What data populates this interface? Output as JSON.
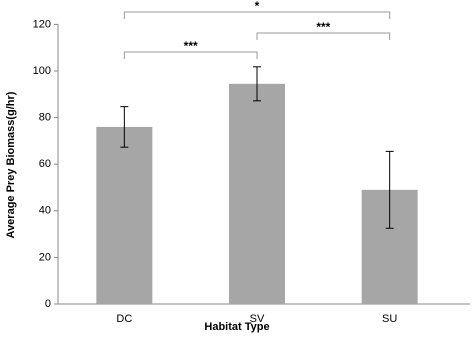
{
  "chart_data": {
    "type": "bar",
    "x_label": "Habitat Type",
    "y_label": "Average Prey Biomass(g/hr)",
    "categories": [
      "DC",
      "SV",
      "SU"
    ],
    "values": [
      76,
      94.5,
      49
    ],
    "errors": [
      8.7,
      7.3,
      16.5
    ],
    "color": "#a6a6a6",
    "ylim": [
      0,
      120
    ],
    "yticks": [
      0,
      20,
      40,
      60,
      80,
      100,
      120
    ],
    "grid": false,
    "significance": [
      {
        "pair": [
          "DC",
          "SU"
        ],
        "label": "*"
      },
      {
        "pair": [
          "SV",
          "SU"
        ],
        "label": "***"
      },
      {
        "pair": [
          "DC",
          "SV"
        ],
        "label": "***"
      }
    ]
  }
}
